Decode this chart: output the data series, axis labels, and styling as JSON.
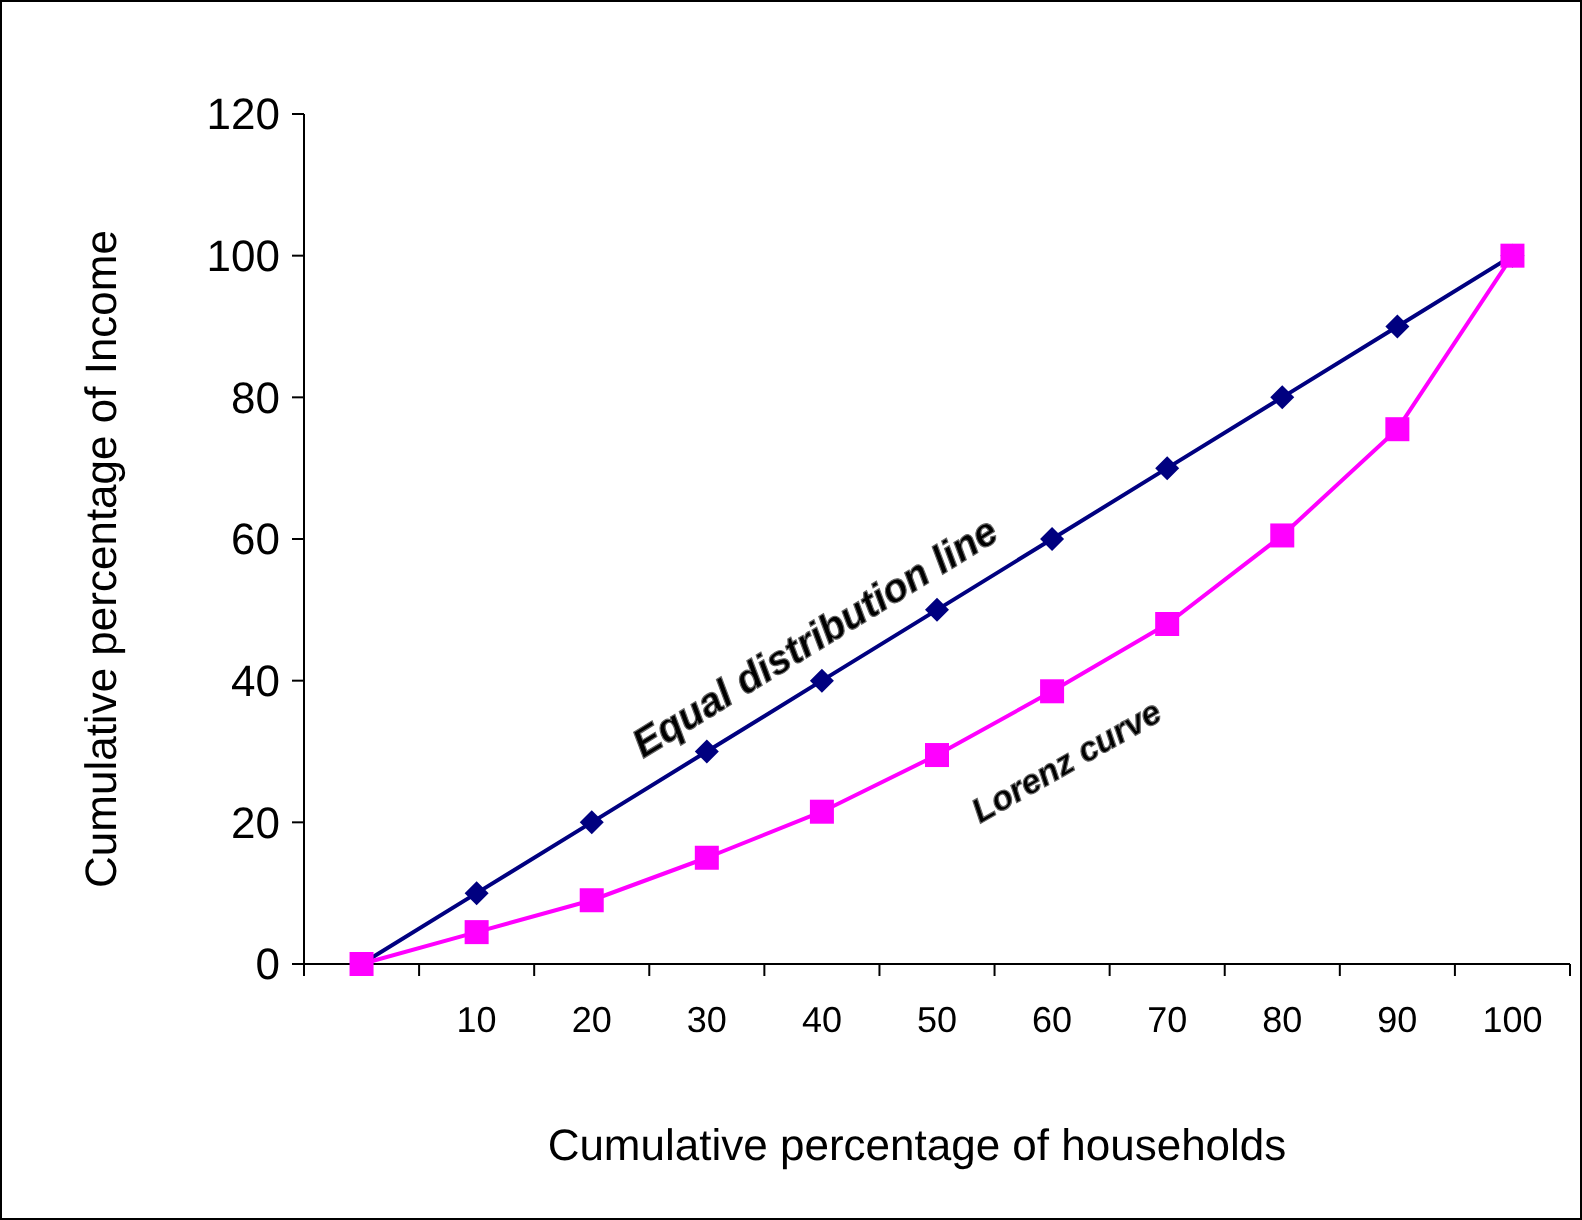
{
  "chart_data": {
    "type": "line",
    "xlabel": "Cumulative percentage of households",
    "ylabel": "Cumulative percentage of Income",
    "categories": [
      null,
      "10",
      "20",
      "30",
      "40",
      "50",
      "60",
      "70",
      "80",
      "90",
      "100"
    ],
    "series": [
      {
        "name": "Equal distribution line",
        "color": "#000080",
        "marker": "diamond",
        "values": [
          0,
          10,
          20,
          30,
          40,
          50,
          60,
          70,
          80,
          90,
          100
        ]
      },
      {
        "name": "Lorenz curve",
        "color": "#ff00ff",
        "marker": "square",
        "values": [
          0,
          4.5,
          9,
          15,
          21.5,
          29.5,
          38.5,
          48,
          60.5,
          75.5,
          100
        ]
      }
    ],
    "ylim": [
      0,
      120
    ],
    "yticks": [
      0,
      20,
      40,
      60,
      80,
      100,
      120
    ],
    "grid": false
  }
}
